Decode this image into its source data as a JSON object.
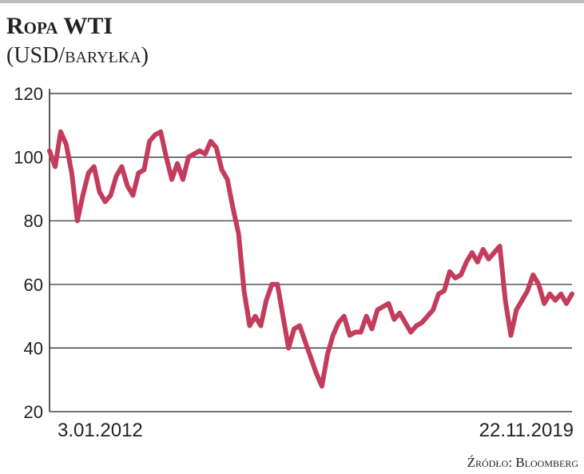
{
  "chart_data": {
    "type": "line",
    "title": "Ropa WTI",
    "subtitle": "(USD/baryłka)",
    "source": "Źródło: Bloomberg",
    "categories": [
      "3.01.2012",
      null,
      null,
      null,
      null,
      null,
      null,
      null,
      null,
      null,
      null,
      null,
      null,
      null,
      null,
      null,
      null,
      null,
      null,
      null,
      null,
      null,
      null,
      null,
      null,
      null,
      null,
      null,
      null,
      null,
      null,
      null,
      null,
      null,
      null,
      null,
      null,
      null,
      null,
      null,
      null,
      null,
      null,
      null,
      null,
      null,
      null,
      null,
      null,
      null,
      null,
      null,
      null,
      null,
      null,
      null,
      null,
      null,
      null,
      null,
      null,
      null,
      null,
      null,
      null,
      null,
      null,
      null,
      null,
      null,
      null,
      null,
      null,
      null,
      null,
      null,
      null,
      null,
      null,
      null,
      null,
      null,
      null,
      null,
      null,
      null,
      null,
      null,
      null,
      null,
      null,
      null,
      null,
      null,
      "22.11.2019"
    ],
    "values": [
      102,
      97,
      108,
      104,
      95,
      80,
      88,
      95,
      97,
      89,
      86,
      88,
      94,
      97,
      91,
      88,
      95,
      96,
      105,
      107,
      108,
      100,
      93,
      98,
      93,
      100,
      101,
      102,
      101,
      105,
      103,
      96,
      93,
      84,
      76,
      58,
      47,
      50,
      47,
      55,
      60,
      60,
      50,
      40,
      46,
      47,
      42,
      37,
      32,
      28,
      38,
      44,
      48,
      50,
      44,
      45,
      45,
      50,
      46,
      52,
      53,
      54,
      49,
      51,
      48,
      45,
      47,
      48,
      50,
      52,
      57,
      58,
      64,
      62,
      63,
      67,
      70,
      67,
      71,
      68,
      70,
      72,
      55,
      44,
      52,
      55,
      58,
      63,
      60,
      54,
      57,
      55,
      57,
      54,
      57
    ],
    "color": "#c43c5c",
    "ylim": [
      20,
      120
    ],
    "yticks": [
      20,
      40,
      60,
      80,
      100,
      120
    ],
    "grid": true
  }
}
